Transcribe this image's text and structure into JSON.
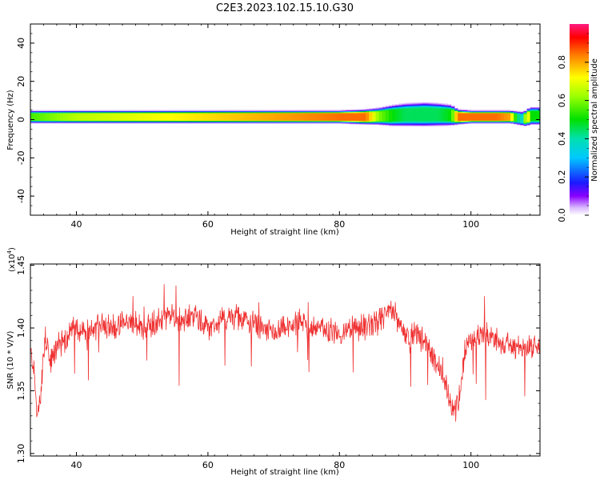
{
  "title": "C2E3.2023.102.15.10.G30",
  "chart_data": [
    {
      "type": "heatmap",
      "xlabel": "Height of straight line (km)",
      "ylabel": "Frequency (Hz)",
      "xlim": [
        33,
        110.5
      ],
      "ylim": [
        -50,
        50
      ],
      "xticks": [
        {
          "value": 40,
          "label": "40"
        },
        {
          "value": 60,
          "label": "60"
        },
        {
          "value": 80,
          "label": "80"
        },
        {
          "value": 100,
          "label": "100"
        }
      ],
      "yticks": [
        {
          "value": 40,
          "label": "40"
        },
        {
          "value": 20,
          "label": "20"
        },
        {
          "value": 0,
          "label": "0"
        },
        {
          "value": -20,
          "label": "-20"
        },
        {
          "value": -40,
          "label": "-40"
        }
      ],
      "colorbar": {
        "label": "Normalized spectral amplitude",
        "range": [
          0,
          1
        ],
        "ticks": [
          {
            "value": 0.0,
            "label": "0.0"
          },
          {
            "value": 0.2,
            "label": "0.2"
          },
          {
            "value": 0.4,
            "label": "0.4"
          },
          {
            "value": 0.6,
            "label": "0.6"
          },
          {
            "value": 0.8,
            "label": "0.8"
          }
        ]
      },
      "band_profile": {
        "x": [
          33,
          40,
          50,
          60,
          70,
          80,
          84,
          86,
          88,
          90,
          93,
          95,
          97,
          98,
          100,
          104,
          106,
          107,
          108,
          108.5,
          109,
          109.5,
          110,
          110.5
        ],
        "center_hz": [
          1.5,
          1.5,
          1.5,
          1.5,
          1.5,
          1.5,
          1.5,
          1.8,
          2.2,
          2.6,
          2.8,
          2.7,
          2.4,
          1.5,
          1.5,
          1.5,
          1.5,
          1.0,
          0.5,
          1.0,
          2.0,
          2.0,
          2.0,
          2.0
        ],
        "halfwidth_hz": [
          3.0,
          3.0,
          3.0,
          3.0,
          3.0,
          3.0,
          3.5,
          4.0,
          5.0,
          5.5,
          5.8,
          5.5,
          5.0,
          3.5,
          3.0,
          3.0,
          3.0,
          3.2,
          3.5,
          3.8,
          4.2,
          4.2,
          4.2,
          4.2
        ],
        "peak_amp": [
          0.55,
          0.65,
          0.7,
          0.75,
          0.8,
          0.85,
          0.85,
          0.6,
          0.5,
          0.45,
          0.45,
          0.45,
          0.5,
          0.85,
          0.85,
          0.85,
          0.8,
          0.45,
          0.35,
          0.9,
          0.5,
          0.5,
          0.5,
          0.5
        ]
      }
    },
    {
      "type": "line",
      "xlabel": "Height of straight line (km)",
      "ylabel": "SNR (10 * V/V)",
      "yscale_label": "(x10",
      "yscale_exp": "4",
      "xlim": [
        33,
        110.5
      ],
      "ylim": [
        1.298,
        1.451
      ],
      "xticks": [
        {
          "value": 40,
          "label": "40"
        },
        {
          "value": 60,
          "label": "60"
        },
        {
          "value": 80,
          "label": "80"
        },
        {
          "value": 100,
          "label": "100"
        }
      ],
      "yticks": [
        {
          "value": 1.3,
          "label": "1.30"
        },
        {
          "value": 1.35,
          "label": "1.35"
        },
        {
          "value": 1.4,
          "label": "1.40"
        },
        {
          "value": 1.45,
          "label": "1.45"
        }
      ],
      "color": "#ef3030",
      "series": [
        {
          "x": [
            33.0,
            33.5,
            34.0,
            34.5,
            35.0,
            35.5,
            36.0,
            37.0,
            38.0,
            39.0,
            40.0,
            42.0,
            44.0,
            46.0,
            48.0,
            50.0,
            52.0,
            54.0,
            56.0,
            58.0,
            60.0,
            62.0,
            64.0,
            66.0,
            68.0,
            70.0,
            72.0,
            74.0,
            76.0,
            78.0,
            80.0,
            82.0,
            84.0,
            86.0,
            87.0,
            88.0,
            89.0,
            90.0,
            92.0,
            94.0,
            95.0,
            96.0,
            97.0,
            97.5,
            98.0,
            98.5,
            99.0,
            100.0,
            102.0,
            104.0,
            106.0,
            108.0,
            110.0,
            110.5
          ],
          "values": [
            1.38,
            1.37,
            1.33,
            1.34,
            1.38,
            1.39,
            1.37,
            1.385,
            1.39,
            1.395,
            1.4,
            1.395,
            1.405,
            1.4,
            1.405,
            1.4,
            1.405,
            1.41,
            1.405,
            1.41,
            1.4,
            1.405,
            1.41,
            1.405,
            1.4,
            1.395,
            1.4,
            1.405,
            1.4,
            1.4,
            1.395,
            1.4,
            1.4,
            1.405,
            1.41,
            1.415,
            1.405,
            1.395,
            1.395,
            1.38,
            1.37,
            1.355,
            1.34,
            1.335,
            1.34,
            1.355,
            1.38,
            1.39,
            1.395,
            1.39,
            1.385,
            1.385,
            1.385,
            1.385
          ],
          "noise_amplitude": 0.008
        }
      ]
    }
  ]
}
